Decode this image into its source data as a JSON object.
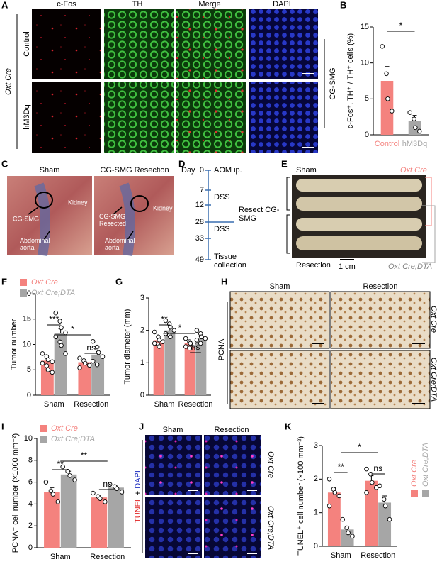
{
  "panel_labels": [
    "A",
    "B",
    "C",
    "D",
    "E",
    "F",
    "G",
    "H",
    "I",
    "J",
    "K"
  ],
  "panel_a": {
    "columns": [
      "c-Fos",
      "TH",
      "Merge",
      "DAPI"
    ],
    "rows": [
      "Control",
      "hM3Dq"
    ],
    "genotype": "Oxt Cre",
    "region": "CG-SMG"
  },
  "panel_c": {
    "titles": [
      "Sham",
      "CG-SMG Resection"
    ],
    "sham_labels": [
      "CG-SMG",
      "Kidney",
      "Abdominal aorta"
    ],
    "resection_labels": [
      "CG-SMG Resected",
      "Kidney",
      "Abdominal aorta"
    ]
  },
  "panel_d": {
    "day_label": "Day",
    "days": [
      0,
      7,
      12,
      28,
      33,
      49
    ],
    "events": [
      "AOM ip.",
      "DSS",
      "DSS",
      "Tissue collection"
    ],
    "resect": "Resect CG-SMG"
  },
  "panel_e": {
    "top": "Sham",
    "bottom": "Resection",
    "scale": "1 cm",
    "genotype_top": "Oxt Cre",
    "genotype_bottom": "Oxt Cre;DTA"
  },
  "panel_h": {
    "columns": [
      "Sham",
      "Resection"
    ],
    "stain": "PCNA",
    "rows": [
      "Oxt Cre",
      "Oxt Cre;DTA"
    ]
  },
  "panel_j": {
    "columns": [
      "Sham",
      "Resection"
    ],
    "stain_parts": [
      "TUNEL",
      "+",
      "DAPI"
    ],
    "rows": [
      "Oxt Cre",
      "Oxt Cre;DTA"
    ]
  },
  "chart_data": [
    {
      "type": "bar",
      "y_label": "c-Fos⁺, TH⁺ / TH⁺ cells (%)",
      "categories": [
        "Control",
        "hM3Dq"
      ],
      "values": [
        7.5,
        1.9
      ],
      "errors": [
        2.0,
        0.8
      ],
      "colors": [
        "#f4827e",
        "#a6a6a6"
      ],
      "points": [
        [
          12.3,
          8.5,
          5.0,
          3.3
        ],
        [
          3.1,
          2.2,
          1.0,
          0.5
        ]
      ],
      "ylim": [
        0,
        15
      ],
      "yticks": [
        0,
        5,
        10,
        15
      ],
      "annotations": [
        "*"
      ]
    },
    {
      "type": "bar",
      "y_label": "Tumor number",
      "categories": [
        "Sham",
        "Resection"
      ],
      "legend": "top",
      "series": [
        {
          "name": "Oxt Cre",
          "color": "#f4827e",
          "values": [
            6.8,
            6.5
          ],
          "errors": [
            0.5,
            0.4
          ],
          "points": [
            [
              8.2,
              7.6,
              7.0,
              6.6,
              6.3,
              5.8,
              5.0,
              4.5
            ],
            [
              7.3,
              6.8,
              6.3,
              5.9,
              5.4
            ]
          ]
        },
        {
          "name": "Oxt Cre;DTA",
          "color": "#a6a6a6",
          "values": [
            12.2,
            8.0
          ],
          "errors": [
            0.9,
            0.6
          ],
          "points": [
            [
              16.2,
              14.6,
              13.3,
              12.3,
              11.5,
              10.5,
              9.8,
              8.2
            ],
            [
              10.6,
              9.5,
              8.4,
              7.6,
              6.7,
              6.0
            ]
          ]
        }
      ],
      "ylim": [
        0,
        20
      ],
      "yticks": [
        0,
        5,
        10,
        15,
        20
      ],
      "annotations": [
        "***",
        "ns",
        "*"
      ]
    },
    {
      "type": "bar",
      "y_label": "Tumor diameter (mm)",
      "categories": [
        "Sham",
        "Resection"
      ],
      "series": [
        {
          "color": "#f4827e",
          "values": [
            1.7,
            1.6
          ],
          "errors": [
            0.05,
            0.05
          ],
          "points": [
            [
              1.95,
              1.8,
              1.7,
              1.65,
              1.6,
              1.55,
              1.5
            ],
            [
              1.75,
              1.65,
              1.6,
              1.55,
              1.5,
              1.45
            ]
          ]
        },
        {
          "color": "#a6a6a6",
          "values": [
            2.0,
            1.75
          ],
          "errors": [
            0.07,
            0.06
          ],
          "points": [
            [
              2.3,
              2.2,
              2.1,
              2.0,
              1.9,
              1.85,
              1.8
            ],
            [
              2.0,
              1.9,
              1.8,
              1.75,
              1.7,
              1.6
            ]
          ]
        }
      ],
      "ylim": [
        0,
        3
      ],
      "yticks": [
        0,
        1,
        2,
        3
      ],
      "annotations": [
        "**",
        "ns",
        "*"
      ]
    },
    {
      "type": "bar",
      "y_label": "PCNA⁺ cell number (×1000 mm⁻²)",
      "categories": [
        "Sham",
        "Resection"
      ],
      "legend": "top",
      "series": [
        {
          "name": "Oxt Cre",
          "color": "#f4827e",
          "values": [
            5.1,
            4.6
          ],
          "errors": [
            0.4,
            0.2
          ],
          "points": [
            [
              6.0,
              5.2,
              4.9,
              4.2
            ],
            [
              5.0,
              4.7,
              4.5,
              4.2
            ]
          ]
        },
        {
          "name": "Oxt Cre;DTA",
          "color": "#a6a6a6",
          "values": [
            6.7,
            5.5
          ],
          "errors": [
            0.3,
            0.15
          ],
          "points": [
            [
              7.4,
              7.0,
              6.6,
              6.2
            ],
            [
              5.8,
              5.6,
              5.4,
              5.1
            ]
          ]
        }
      ],
      "ylim": [
        0,
        10
      ],
      "yticks": [
        0,
        2,
        4,
        6,
        8,
        10
      ],
      "annotations": [
        "**",
        "ns",
        "**"
      ]
    },
    {
      "type": "bar",
      "y_label": "TUNEL⁺ cell number (×100 mm⁻²)",
      "categories": [
        "Sham",
        "Resection"
      ],
      "legend": "right",
      "series": [
        {
          "name": "Oxt Cre",
          "color": "#f4827e",
          "values": [
            1.6,
            1.95
          ],
          "errors": [
            0.15,
            0.15
          ],
          "points": [
            [
              2.0,
              1.7,
              1.6,
              1.5,
              1.2
            ],
            [
              2.3,
              2.15,
              1.9,
              1.75,
              1.6
            ]
          ]
        },
        {
          "name": "Oxt Cre;DTA",
          "color": "#a6a6a6",
          "values": [
            0.5,
            1.3
          ],
          "errors": [
            0.1,
            0.2
          ],
          "points": [
            [
              0.8,
              0.55,
              0.4,
              0.3
            ],
            [
              1.8,
              1.4,
              1.2,
              0.8
            ]
          ]
        }
      ],
      "ylim": [
        0,
        3
      ],
      "yticks": [
        0,
        1,
        2,
        3
      ],
      "annotations": [
        "**",
        "ns",
        "*"
      ]
    }
  ]
}
